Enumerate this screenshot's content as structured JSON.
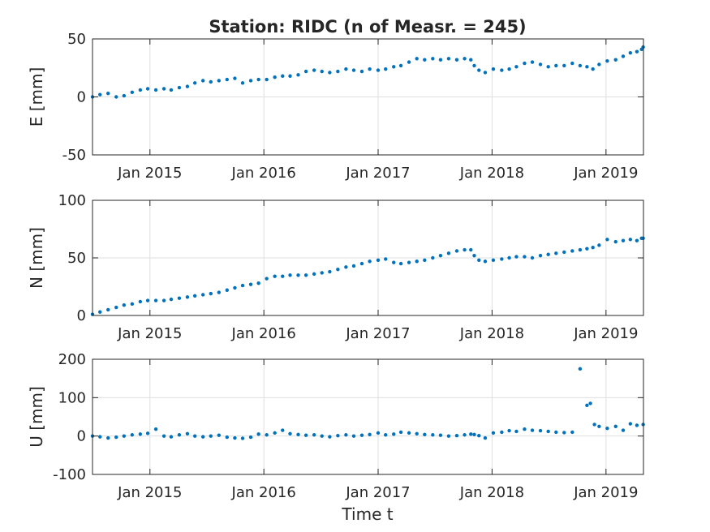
{
  "chart_data": {
    "title": "Station: RIDC (n of Measr. = 245)",
    "type": "scatter",
    "xlabel": "Time t",
    "xrange": [
      "2014-07-01",
      "2019-05-01"
    ],
    "xticks": [
      {
        "date": "2015-01-01",
        "label": "Jan 2015"
      },
      {
        "date": "2016-01-01",
        "label": "Jan 2016"
      },
      {
        "date": "2017-01-01",
        "label": "Jan 2017"
      },
      {
        "date": "2018-01-01",
        "label": "Jan 2018"
      },
      {
        "date": "2019-01-01",
        "label": "Jan 2019"
      }
    ],
    "marker_color": "#0072BD",
    "grid": true,
    "panels": [
      {
        "ylabel": "E [mm]",
        "ylim": [
          -50,
          50
        ],
        "yticks": [
          -50,
          0,
          50
        ],
        "points": [
          [
            "2014-07-01",
            0
          ],
          [
            "2014-07-25",
            2
          ],
          [
            "2014-08-20",
            3
          ],
          [
            "2014-09-15",
            0
          ],
          [
            "2014-10-10",
            1
          ],
          [
            "2014-11-05",
            4
          ],
          [
            "2014-12-01",
            6
          ],
          [
            "2014-12-25",
            7
          ],
          [
            "2015-01-20",
            6
          ],
          [
            "2015-02-15",
            7
          ],
          [
            "2015-03-10",
            6
          ],
          [
            "2015-04-05",
            8
          ],
          [
            "2015-05-01",
            9
          ],
          [
            "2015-05-25",
            12
          ],
          [
            "2015-06-20",
            14
          ],
          [
            "2015-07-15",
            13
          ],
          [
            "2015-08-10",
            14
          ],
          [
            "2015-09-05",
            15
          ],
          [
            "2015-09-30",
            16
          ],
          [
            "2015-10-25",
            12
          ],
          [
            "2015-11-20",
            14
          ],
          [
            "2015-12-15",
            15
          ],
          [
            "2016-01-10",
            15
          ],
          [
            "2016-02-05",
            17
          ],
          [
            "2016-03-01",
            18
          ],
          [
            "2016-03-25",
            18
          ],
          [
            "2016-04-20",
            19
          ],
          [
            "2016-05-15",
            22
          ],
          [
            "2016-06-10",
            23
          ],
          [
            "2016-07-05",
            22
          ],
          [
            "2016-07-30",
            21
          ],
          [
            "2016-08-25",
            22
          ],
          [
            "2016-09-20",
            24
          ],
          [
            "2016-10-15",
            23
          ],
          [
            "2016-11-10",
            22
          ],
          [
            "2016-12-05",
            24
          ],
          [
            "2017-01-01",
            23
          ],
          [
            "2017-01-25",
            24
          ],
          [
            "2017-02-20",
            26
          ],
          [
            "2017-03-15",
            27
          ],
          [
            "2017-04-10",
            30
          ],
          [
            "2017-05-05",
            33
          ],
          [
            "2017-05-30",
            32
          ],
          [
            "2017-06-25",
            33
          ],
          [
            "2017-07-20",
            32
          ],
          [
            "2017-08-15",
            33
          ],
          [
            "2017-09-10",
            32
          ],
          [
            "2017-10-05",
            33
          ],
          [
            "2017-10-25",
            32
          ],
          [
            "2017-11-05",
            27
          ],
          [
            "2017-11-20",
            23
          ],
          [
            "2017-12-10",
            21
          ],
          [
            "2018-01-05",
            24
          ],
          [
            "2018-02-01",
            23
          ],
          [
            "2018-02-25",
            24
          ],
          [
            "2018-03-20",
            26
          ],
          [
            "2018-04-15",
            29
          ],
          [
            "2018-05-10",
            30
          ],
          [
            "2018-06-05",
            28
          ],
          [
            "2018-06-30",
            26
          ],
          [
            "2018-07-25",
            27
          ],
          [
            "2018-08-20",
            27
          ],
          [
            "2018-09-15",
            29
          ],
          [
            "2018-10-10",
            27
          ],
          [
            "2018-11-01",
            26
          ],
          [
            "2018-11-20",
            24
          ],
          [
            "2018-12-10",
            28
          ],
          [
            "2019-01-05",
            31
          ],
          [
            "2019-02-01",
            32
          ],
          [
            "2019-02-25",
            35
          ],
          [
            "2019-03-20",
            38
          ],
          [
            "2019-04-10",
            39
          ],
          [
            "2019-04-25",
            41
          ],
          [
            "2019-04-30",
            43
          ]
        ]
      },
      {
        "ylabel": "N [mm]",
        "ylim": [
          0,
          100
        ],
        "yticks": [
          0,
          50,
          100
        ],
        "points": [
          [
            "2014-07-01",
            1
          ],
          [
            "2014-07-25",
            3
          ],
          [
            "2014-08-20",
            5
          ],
          [
            "2014-09-15",
            7
          ],
          [
            "2014-10-10",
            9
          ],
          [
            "2014-11-05",
            10
          ],
          [
            "2014-12-01",
            12
          ],
          [
            "2014-12-25",
            13
          ],
          [
            "2015-01-20",
            13
          ],
          [
            "2015-02-15",
            13
          ],
          [
            "2015-03-10",
            14
          ],
          [
            "2015-04-05",
            15
          ],
          [
            "2015-05-01",
            16
          ],
          [
            "2015-05-25",
            17
          ],
          [
            "2015-06-20",
            18
          ],
          [
            "2015-07-15",
            19
          ],
          [
            "2015-08-10",
            20
          ],
          [
            "2015-09-05",
            22
          ],
          [
            "2015-09-30",
            24
          ],
          [
            "2015-10-25",
            26
          ],
          [
            "2015-11-20",
            27
          ],
          [
            "2015-12-15",
            28
          ],
          [
            "2016-01-10",
            32
          ],
          [
            "2016-02-05",
            34
          ],
          [
            "2016-03-01",
            34
          ],
          [
            "2016-03-25",
            35
          ],
          [
            "2016-04-20",
            35
          ],
          [
            "2016-05-15",
            35
          ],
          [
            "2016-06-10",
            36
          ],
          [
            "2016-07-05",
            37
          ],
          [
            "2016-07-30",
            38
          ],
          [
            "2016-08-25",
            40
          ],
          [
            "2016-09-20",
            42
          ],
          [
            "2016-10-15",
            43
          ],
          [
            "2016-11-10",
            45
          ],
          [
            "2016-12-05",
            47
          ],
          [
            "2017-01-01",
            48
          ],
          [
            "2017-01-25",
            49
          ],
          [
            "2017-02-20",
            46
          ],
          [
            "2017-03-15",
            45
          ],
          [
            "2017-04-10",
            46
          ],
          [
            "2017-05-05",
            47
          ],
          [
            "2017-05-30",
            48
          ],
          [
            "2017-06-25",
            50
          ],
          [
            "2017-07-20",
            52
          ],
          [
            "2017-08-15",
            54
          ],
          [
            "2017-09-10",
            56
          ],
          [
            "2017-10-05",
            57
          ],
          [
            "2017-10-25",
            57
          ],
          [
            "2017-11-05",
            52
          ],
          [
            "2017-11-20",
            48
          ],
          [
            "2017-12-10",
            47
          ],
          [
            "2018-01-05",
            48
          ],
          [
            "2018-02-01",
            49
          ],
          [
            "2018-02-25",
            50
          ],
          [
            "2018-03-20",
            51
          ],
          [
            "2018-04-15",
            51
          ],
          [
            "2018-05-10",
            50
          ],
          [
            "2018-06-05",
            52
          ],
          [
            "2018-06-30",
            53
          ],
          [
            "2018-07-25",
            54
          ],
          [
            "2018-08-20",
            55
          ],
          [
            "2018-09-15",
            56
          ],
          [
            "2018-10-10",
            57
          ],
          [
            "2018-11-01",
            58
          ],
          [
            "2018-11-20",
            59
          ],
          [
            "2018-12-10",
            61
          ],
          [
            "2019-01-05",
            66
          ],
          [
            "2019-02-01",
            64
          ],
          [
            "2019-02-25",
            65
          ],
          [
            "2019-03-20",
            66
          ],
          [
            "2019-04-10",
            65
          ],
          [
            "2019-04-25",
            67
          ],
          [
            "2019-04-30",
            67
          ]
        ]
      },
      {
        "ylabel": "U [mm]",
        "ylim": [
          -100,
          200
        ],
        "yticks": [
          -100,
          0,
          100,
          200
        ],
        "points": [
          [
            "2014-07-01",
            0
          ],
          [
            "2014-07-25",
            -2
          ],
          [
            "2014-08-20",
            -5
          ],
          [
            "2014-09-15",
            -3
          ],
          [
            "2014-10-10",
            0
          ],
          [
            "2014-11-05",
            3
          ],
          [
            "2014-12-01",
            5
          ],
          [
            "2014-12-25",
            7
          ],
          [
            "2015-01-20",
            18
          ],
          [
            "2015-02-15",
            0
          ],
          [
            "2015-03-10",
            -2
          ],
          [
            "2015-04-05",
            3
          ],
          [
            "2015-05-01",
            6
          ],
          [
            "2015-05-25",
            0
          ],
          [
            "2015-06-20",
            -2
          ],
          [
            "2015-07-15",
            0
          ],
          [
            "2015-08-10",
            2
          ],
          [
            "2015-09-05",
            -3
          ],
          [
            "2015-09-30",
            -5
          ],
          [
            "2015-10-25",
            -6
          ],
          [
            "2015-11-20",
            -3
          ],
          [
            "2015-12-15",
            5
          ],
          [
            "2016-01-10",
            3
          ],
          [
            "2016-02-05",
            8
          ],
          [
            "2016-03-01",
            15
          ],
          [
            "2016-03-25",
            6
          ],
          [
            "2016-04-20",
            4
          ],
          [
            "2016-05-15",
            2
          ],
          [
            "2016-06-10",
            3
          ],
          [
            "2016-07-05",
            0
          ],
          [
            "2016-07-30",
            -2
          ],
          [
            "2016-08-25",
            1
          ],
          [
            "2016-09-20",
            3
          ],
          [
            "2016-10-15",
            0
          ],
          [
            "2016-11-10",
            2
          ],
          [
            "2016-12-05",
            4
          ],
          [
            "2017-01-01",
            8
          ],
          [
            "2017-01-25",
            3
          ],
          [
            "2017-02-20",
            5
          ],
          [
            "2017-03-15",
            10
          ],
          [
            "2017-04-10",
            8
          ],
          [
            "2017-05-05",
            6
          ],
          [
            "2017-05-30",
            4
          ],
          [
            "2017-06-25",
            3
          ],
          [
            "2017-07-20",
            2
          ],
          [
            "2017-08-15",
            0
          ],
          [
            "2017-09-10",
            1
          ],
          [
            "2017-10-05",
            3
          ],
          [
            "2017-10-25",
            5
          ],
          [
            "2017-11-05",
            4
          ],
          [
            "2017-11-20",
            1
          ],
          [
            "2017-12-10",
            -5
          ],
          [
            "2018-01-05",
            8
          ],
          [
            "2018-02-01",
            10
          ],
          [
            "2018-02-25",
            14
          ],
          [
            "2018-03-20",
            12
          ],
          [
            "2018-04-15",
            18
          ],
          [
            "2018-05-10",
            15
          ],
          [
            "2018-06-05",
            14
          ],
          [
            "2018-06-30",
            12
          ],
          [
            "2018-07-25",
            10
          ],
          [
            "2018-08-20",
            9
          ],
          [
            "2018-09-15",
            10
          ],
          [
            "2018-10-10",
            175
          ],
          [
            "2018-11-01",
            80
          ],
          [
            "2018-11-12",
            85
          ],
          [
            "2018-11-25",
            30
          ],
          [
            "2018-12-10",
            25
          ],
          [
            "2019-01-05",
            20
          ],
          [
            "2019-02-01",
            25
          ],
          [
            "2019-02-25",
            15
          ],
          [
            "2019-03-20",
            32
          ],
          [
            "2019-04-10",
            28
          ],
          [
            "2019-04-30",
            30
          ]
        ]
      }
    ]
  }
}
